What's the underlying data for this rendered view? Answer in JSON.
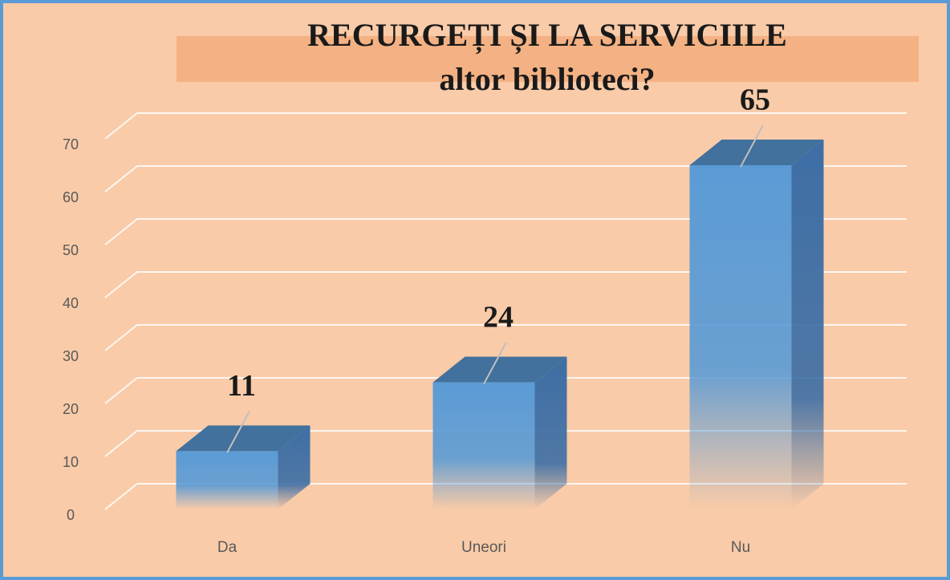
{
  "chart_data": {
    "type": "bar3d",
    "title_lines": [
      "RECURGEȚI ȘI LA SERVICIILE",
      "altor biblioteci?"
    ],
    "categories": [
      "Da",
      "Uneori",
      "Nu"
    ],
    "values": [
      11,
      24,
      65
    ],
    "color": "#5b9bd5",
    "ylim": [
      0,
      70
    ],
    "yticks": [
      0,
      10,
      20,
      30,
      40,
      50,
      60,
      70
    ],
    "grid": true
  }
}
